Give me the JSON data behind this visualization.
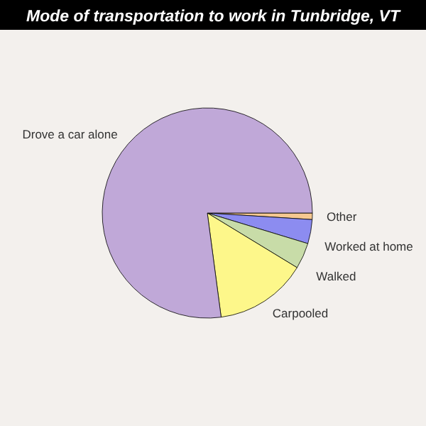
{
  "chart_data": {
    "type": "pie",
    "title": "Mode of transportation to work in Tunbridge, VT",
    "categories": [
      "Other",
      "Worked at home",
      "Walked",
      "Carpooled",
      "Drove a car alone"
    ],
    "values": [
      1,
      3.7,
      4,
      14.2,
      77.1
    ],
    "colors": [
      "#f5c890",
      "#8c8cf0",
      "#c8dca8",
      "#fdf78a",
      "#c0a8d8"
    ]
  }
}
